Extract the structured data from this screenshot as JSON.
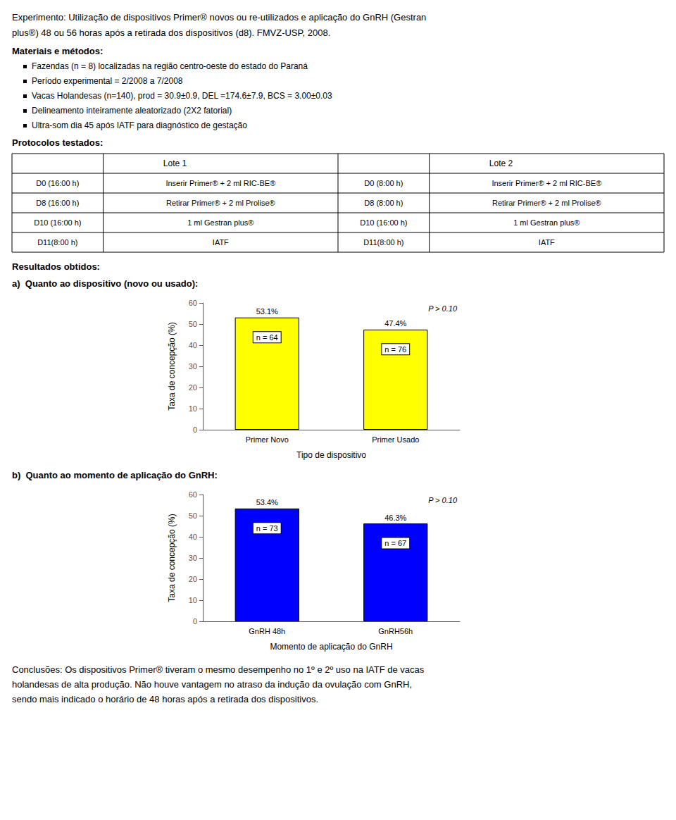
{
  "title_lines": [
    "Experimento: Utilização de dispositivos Primer® novos ou re-utilizados e aplicação do GnRH (Gestran",
    "plus®) 48 ou 56 horas após a retirada dos dispositivos (d8). FMVZ-USP, 2008."
  ],
  "materials_title": "Materiais e métodos:",
  "bullets": [
    "Fazendas (n = 8) localizadas na região centro-oeste do estado do Paraná",
    "Período experimental = 2/2008 a 7/2008",
    "Vacas Holandesas (n=140), prod = 30.9±0.9, DEL =174.6±7.9, BCS = 3.00±0.03",
    "Delineamento inteiramente aleatorizado (2X2 fatorial)",
    "Ultra-som dia 45 após IATF para diagnóstico de gestação"
  ],
  "protocols_title": "Protocolos testados:",
  "table": {
    "header": [
      "Lote 1",
      "Lote 2"
    ],
    "rows": [
      [
        "D0 (16:00 h)",
        "Inserir Primer® + 2 ml RIC-BE®",
        "D0 (8:00 h)",
        "Inserir Primer® + 2 ml RIC-BE®"
      ],
      [
        "D8 (16:00 h)",
        "Retirar Primer® + 2 ml Prolise®",
        "D8 (8:00 h)",
        "Retirar Primer® + 2 ml Prolise®"
      ],
      [
        "D10 (16:00 h)",
        "1 ml Gestran plus®",
        "D10 (16:00 h)",
        "1 ml Gestran plus®"
      ],
      [
        "D11(8:00 h)",
        "IATF",
        "D11(8:00 h)",
        "IATF"
      ]
    ]
  },
  "results_title": "Resultados obtidos:",
  "chart_data": [
    {
      "type": "bar",
      "title": "a)  Quanto ao dispositivo (novo ou usado):",
      "categories": [
        "Primer Novo",
        "Primer Usado"
      ],
      "values": [
        53.1,
        47.4
      ],
      "value_labels": [
        "53.1%",
        "47.4%"
      ],
      "data_labels": true,
      "n_labels": [
        "n = 64",
        "n = 76"
      ],
      "annotation": "P > 0.10",
      "xlabel": "Tipo de dispositivo",
      "ylabel": "Taxa de concepção (%)",
      "color": "#FFFF00",
      "ylim": [
        0,
        60
      ],
      "yticks": [
        0,
        10,
        20,
        30,
        40,
        50,
        60
      ],
      "grid": false
    },
    {
      "type": "bar",
      "title": "b)  Quanto ao momento de aplicação do GnRH:",
      "categories": [
        "GnRH 48h",
        "GnRH56h"
      ],
      "values": [
        53.4,
        46.3
      ],
      "value_labels": [
        "53.4%",
        "46.3%"
      ],
      "data_labels": true,
      "n_labels": [
        "n = 73",
        "n = 67"
      ],
      "annotation": "P > 0.10",
      "xlabel": "Momento de aplicação do GnRH",
      "ylabel": "Taxa de concepção (%)",
      "color": "#0000FF",
      "ylim": [
        0,
        60
      ],
      "yticks": [
        0,
        10,
        20,
        30,
        40,
        50,
        60
      ],
      "grid": false
    }
  ],
  "conclusions": [
    "Conclusões: Os dispositivos Primer® tiveram o mesmo desempenho no 1º e 2º uso na IATF de vacas",
    "holandesas de alta produção. Não houve vantagem no atraso da indução da ovulação com GnRH,",
    "sendo mais indicado o horário de 48 horas após a retirada dos dispositivos."
  ]
}
